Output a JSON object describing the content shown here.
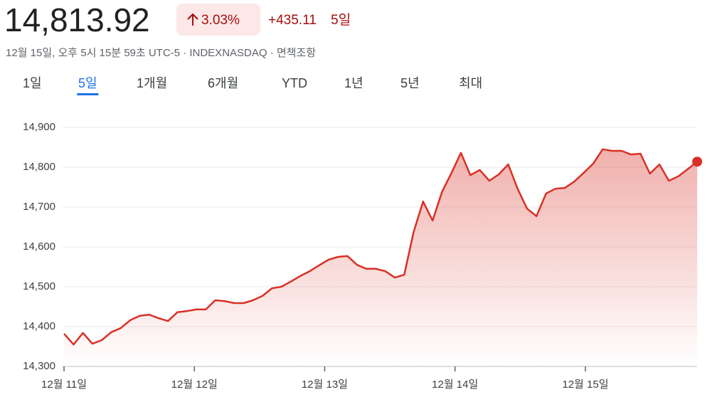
{
  "header": {
    "price": "14,813.92",
    "change_percent": "3.03%",
    "change": "+435.11",
    "period": "5일",
    "subtitle": "12월 15일, 오후 5시 15분 59초 UTC-5 · INDEXNASDAQ · 면책조항",
    "tabs": [
      "1일",
      "5일",
      "1개월",
      "6개월",
      "YTD",
      "1년",
      "5년",
      "최대"
    ],
    "selected_tab": 1
  },
  "chart_data": {
    "type": "line",
    "x": [
      0,
      0.073,
      0.145,
      0.218,
      0.29,
      0.363,
      0.435,
      0.508,
      0.58,
      0.653,
      0.725,
      0.798,
      0.87,
      0.943,
      1.015,
      1.088,
      1.16,
      1.233,
      1.305,
      1.378,
      1.45,
      1.523,
      1.595,
      1.668,
      1.74,
      1.813,
      1.885,
      1.958,
      2.03,
      2.103,
      2.175,
      2.248,
      2.32,
      2.393,
      2.465,
      2.538,
      2.61,
      2.683,
      2.755,
      2.828,
      2.9,
      2.973,
      3.045,
      3.118,
      3.19,
      3.263,
      3.335,
      3.408,
      3.48,
      3.553,
      3.625,
      3.698,
      3.77,
      3.843,
      3.915,
      3.988,
      4.06,
      4.133,
      4.205,
      4.278,
      4.35,
      4.423,
      4.495,
      4.568,
      4.64,
      4.713,
      4.785,
      4.858
    ],
    "series": [
      {
        "color": "#d93025",
        "values": [
          14382,
          14355,
          14384,
          14357,
          14366,
          14386,
          14396,
          14416,
          14427,
          14430,
          14421,
          14414,
          14436,
          14439,
          14443,
          14443,
          14466,
          14464,
          14459,
          14459,
          14466,
          14477,
          14496,
          14500,
          14513,
          14527,
          14539,
          14554,
          14568,
          14575,
          14577,
          14555,
          14545,
          14545,
          14539,
          14523,
          14530,
          14638,
          14714,
          14666,
          14738,
          14786,
          14836,
          14780,
          14793,
          14766,
          14782,
          14807,
          14746,
          14696,
          14677,
          14734,
          14746,
          14748,
          14764,
          14786,
          14809,
          14845,
          14841,
          14841,
          14832,
          14834,
          14784,
          14807,
          14766,
          14777,
          14795,
          14813.92
        ]
      }
    ],
    "xlim": [
      0,
      4.858
    ],
    "xticks": [
      {
        "value": 0,
        "label": "12월 11일"
      },
      {
        "value": 1,
        "label": "12월 12일"
      },
      {
        "value": 2,
        "label": "12월 13일"
      },
      {
        "value": 3,
        "label": "12월 14일"
      },
      {
        "value": 4,
        "label": "12월 15일"
      }
    ],
    "ylim": [
      14300,
      14900
    ],
    "yticks": [
      {
        "value": 14300,
        "label": "14,300"
      },
      {
        "value": 14400,
        "label": "14,400"
      },
      {
        "value": 14500,
        "label": "14,500"
      },
      {
        "value": 14600,
        "label": "14,600"
      },
      {
        "value": 14700,
        "label": "14,700"
      },
      {
        "value": 14800,
        "label": "14,800"
      },
      {
        "value": 14900,
        "label": "14,900"
      }
    ],
    "grid": true
  }
}
